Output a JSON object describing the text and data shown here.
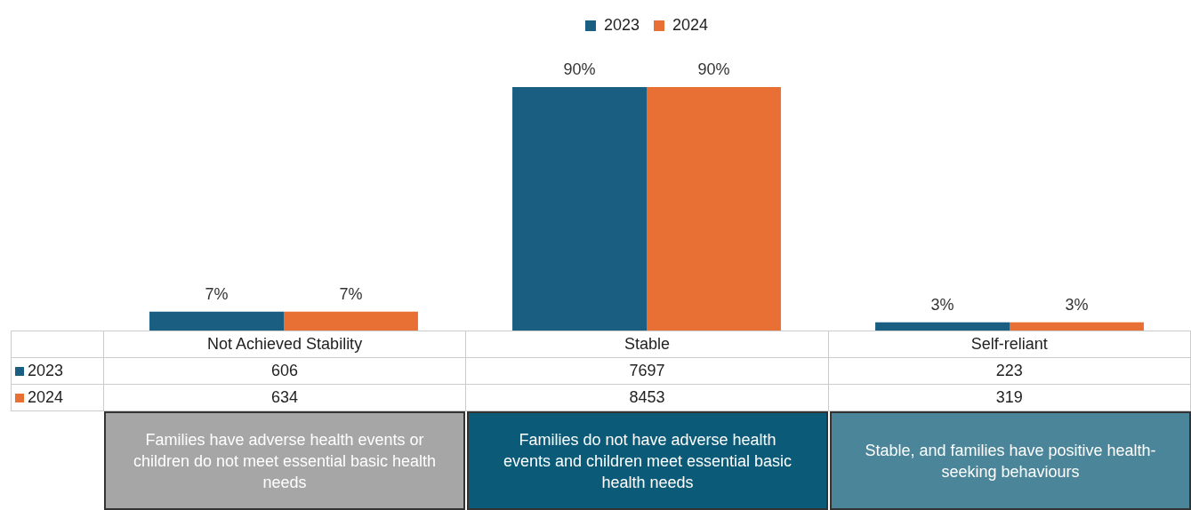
{
  "chart_data": {
    "type": "bar",
    "categories": [
      "Not Achieved Stability",
      "Stable",
      "Self-reliant"
    ],
    "series": [
      {
        "name": "2023",
        "color": "#1a5f82",
        "values": [
          7,
          90,
          3
        ],
        "value_labels": [
          "7%",
          "90%",
          "3%"
        ]
      },
      {
        "name": "2024",
        "color": "#e87034",
        "values": [
          7,
          90,
          3
        ],
        "value_labels": [
          "7%",
          "90%",
          "3%"
        ]
      }
    ],
    "legend": "top",
    "annotations": [
      "606",
      "7697",
      "223",
      "634",
      "8453",
      "319",
      "Families have adverse health events or children do not meet essential basic health needs",
      "Families do not have adverse health events and children meet essential basic health needs",
      "Stable, and families have positive health-seeking behaviours"
    ]
  }
}
